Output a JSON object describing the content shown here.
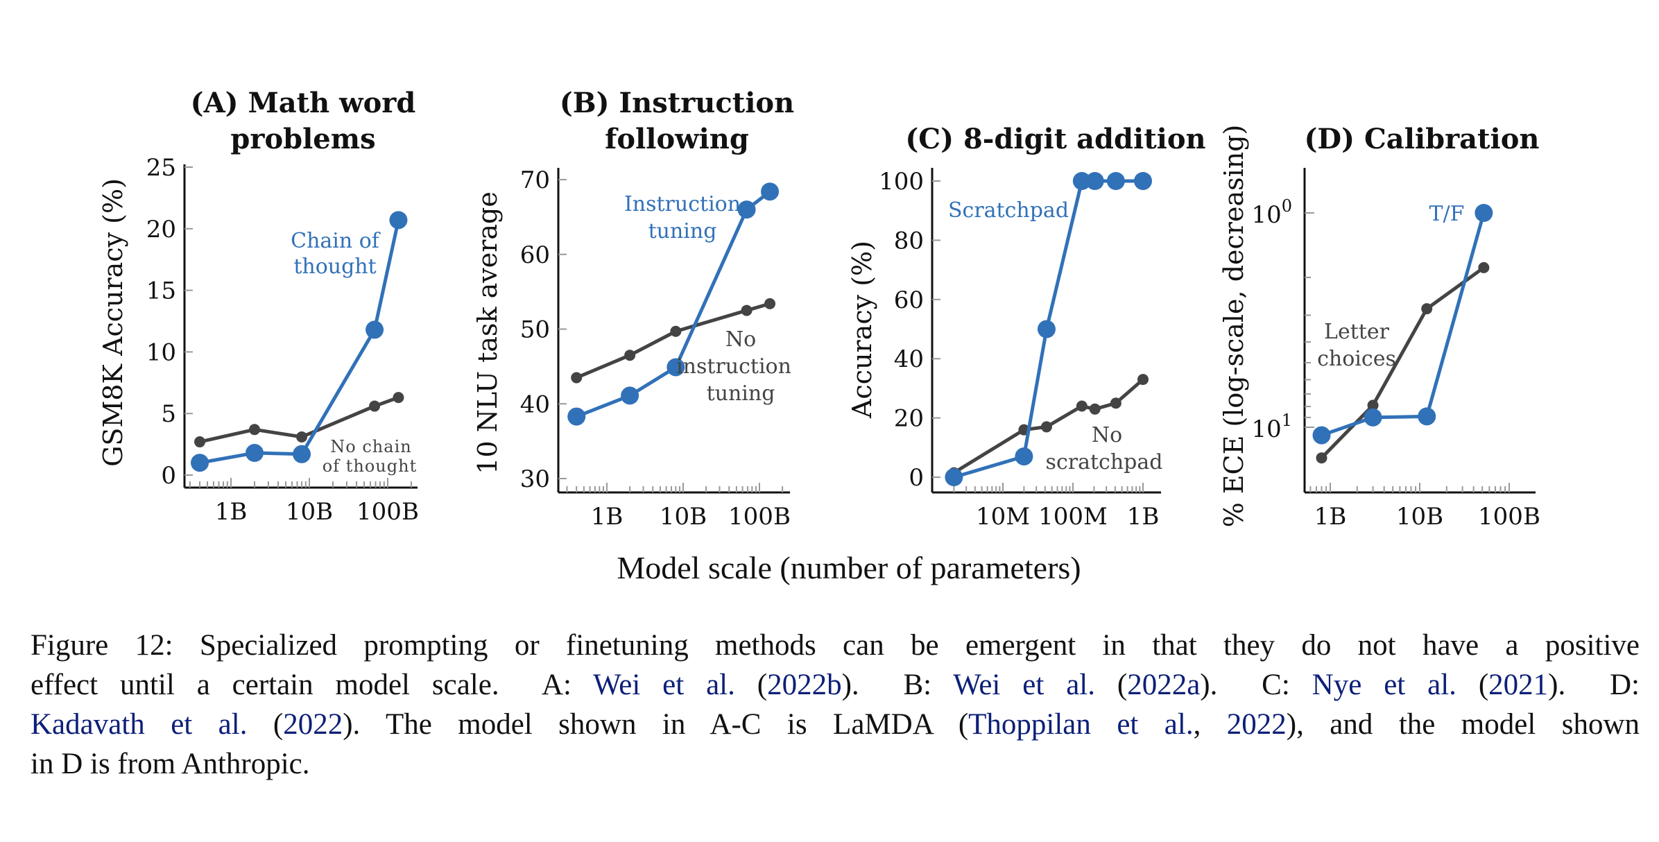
{
  "colors": {
    "method": "#3171b8",
    "baseline": "#444444",
    "citation": "#0c1f78",
    "axis": "#111111",
    "minor_tick": "#999999"
  },
  "shared_xlabel": "Model scale (number of parameters)",
  "chart_data": [
    {
      "id": "A",
      "type": "line",
      "title_line1": "(A) Math word",
      "title_line2": "problems",
      "ylabel": "GSM8K Accuracy (%)",
      "xscale": "log",
      "yscale": "linear",
      "xlim": [
        250000000.0,
        230000000000.0
      ],
      "ylim": [
        0,
        25
      ],
      "xticks": [
        {
          "value": 1000000000.0,
          "label": "1B"
        },
        {
          "value": 10000000000.0,
          "label": "10B"
        },
        {
          "value": 100000000000.0,
          "label": "100B"
        }
      ],
      "yticks": [
        {
          "value": 0,
          "label": "0"
        },
        {
          "value": 5,
          "label": "5"
        },
        {
          "value": 10,
          "label": "10"
        },
        {
          "value": 15,
          "label": "15"
        },
        {
          "value": 20,
          "label": "20"
        },
        {
          "value": 25,
          "label": "25"
        }
      ],
      "series": [
        {
          "name": "No chain of thought",
          "role": "baseline",
          "x": [
            400000000.0,
            2000000000.0,
            8000000000.0,
            68000000000.0,
            137000000000.0
          ],
          "y": [
            2.7,
            3.7,
            3.1,
            5.6,
            6.3
          ]
        },
        {
          "name": "Chain of thought",
          "role": "method",
          "x": [
            400000000.0,
            2000000000.0,
            8000000000.0,
            68000000000.0,
            137000000000.0
          ],
          "y": [
            1.0,
            1.8,
            1.7,
            11.8,
            20.7
          ]
        }
      ],
      "annotations": [
        {
          "lines": [
            "Chain of",
            "thought"
          ],
          "role": "method"
        },
        {
          "lines": [
            "No chain",
            "of thought"
          ],
          "role": "baseline"
        }
      ]
    },
    {
      "id": "B",
      "type": "line",
      "title_line1": "(B) Instruction",
      "title_line2": "following",
      "ylabel": "10 NLU task average",
      "xscale": "log",
      "yscale": "linear",
      "xlim": [
        250000000.0,
        230000000000.0
      ],
      "ylim": [
        30,
        70
      ],
      "xticks": [
        {
          "value": 1000000000.0,
          "label": "1B"
        },
        {
          "value": 10000000000.0,
          "label": "10B"
        },
        {
          "value": 100000000000.0,
          "label": "100B"
        }
      ],
      "yticks": [
        {
          "value": 30,
          "label": "30"
        },
        {
          "value": 40,
          "label": "40"
        },
        {
          "value": 50,
          "label": "50"
        },
        {
          "value": 60,
          "label": "60"
        },
        {
          "value": 70,
          "label": "70"
        }
      ],
      "series": [
        {
          "name": "No instruction tuning",
          "role": "baseline",
          "x": [
            400000000.0,
            2000000000.0,
            8000000000.0,
            68000000000.0,
            137000000000.0
          ],
          "y": [
            43.5,
            46.5,
            49.7,
            52.5,
            53.4
          ]
        },
        {
          "name": "Instruction tuning",
          "role": "method",
          "x": [
            400000000.0,
            2000000000.0,
            8000000000.0,
            68000000000.0,
            137000000000.0
          ],
          "y": [
            38.3,
            41.1,
            44.9,
            66.0,
            68.4
          ]
        }
      ],
      "annotations": [
        {
          "lines": [
            "Instruction",
            "tuning"
          ],
          "role": "method"
        },
        {
          "lines": [
            "No",
            "instruction",
            "tuning"
          ],
          "role": "baseline"
        }
      ]
    },
    {
      "id": "C",
      "type": "line",
      "title_line1": "(C) 8-digit addition",
      "title_line2": "",
      "ylabel": "Accuracy (%)",
      "xscale": "log",
      "yscale": "linear",
      "xlim": [
        1000000.0,
        1900000000.0
      ],
      "ylim": [
        0,
        100
      ],
      "xticks": [
        {
          "value": 10000000.0,
          "label": "10M"
        },
        {
          "value": 100000000.0,
          "label": "100M"
        },
        {
          "value": 1000000000.0,
          "label": "1B"
        }
      ],
      "yticks": [
        {
          "value": 0,
          "label": "0"
        },
        {
          "value": 20,
          "label": "20"
        },
        {
          "value": 40,
          "label": "40"
        },
        {
          "value": 60,
          "label": "60"
        },
        {
          "value": 80,
          "label": "80"
        },
        {
          "value": 100,
          "label": "100"
        }
      ],
      "series": [
        {
          "name": "No scratchpad",
          "role": "baseline",
          "x": [
            2000000.0,
            20000000.0,
            42000000.0,
            134000000.0,
            206000000.0,
            410000000.0,
            1000000000.0
          ],
          "y": [
            1.5,
            16,
            17,
            24,
            23,
            25,
            33
          ]
        },
        {
          "name": "Scratchpad",
          "role": "method",
          "x": [
            2000000.0,
            20000000.0,
            42000000.0,
            134000000.0,
            206000000.0,
            410000000.0,
            1000000000.0
          ],
          "y": [
            0,
            7,
            50,
            100,
            100,
            100,
            100
          ]
        }
      ],
      "annotations": [
        {
          "lines": [
            "Scratchpad"
          ],
          "role": "method"
        },
        {
          "lines": [
            "No",
            "scratchpad"
          ],
          "role": "baseline"
        }
      ]
    },
    {
      "id": "D",
      "type": "line",
      "title_line1": "(D) Calibration",
      "title_line2": "",
      "ylabel": "% ECE (log-scale, decreasing)",
      "xscale": "log",
      "yscale": "log-reversed",
      "xlim": [
        600000000.0,
        230000000000.0
      ],
      "ylim": [
        0.6,
        20
      ],
      "xticks": [
        {
          "value": 1000000000.0,
          "label": "1B"
        },
        {
          "value": 10000000000.0,
          "label": "10B"
        },
        {
          "value": 100000000000.0,
          "label": "100B"
        }
      ],
      "yticks": [
        {
          "value": 1,
          "label_base": "10",
          "label_exp": "0"
        },
        {
          "value": 10,
          "label_base": "10",
          "label_exp": "1"
        }
      ],
      "series": [
        {
          "name": "Letter choices",
          "role": "baseline",
          "x": [
            800000000.0,
            3000000000.0,
            12000000000.0,
            52000000000.0
          ],
          "y": [
            13.9,
            7.9,
            2.8,
            1.8
          ]
        },
        {
          "name": "T/F",
          "role": "method",
          "x": [
            800000000.0,
            3000000000.0,
            12000000000.0,
            52000000000.0
          ],
          "y": [
            10.9,
            9.0,
            8.9,
            1.0
          ]
        }
      ],
      "annotations": [
        {
          "lines": [
            "T/F"
          ],
          "role": "method"
        },
        {
          "lines": [
            "Letter",
            "choices"
          ],
          "role": "baseline"
        }
      ]
    }
  ],
  "caption": {
    "lines": [
      [
        {
          "text": "Figure 12: Specialized prompting or finetuning methods can be emergent in that they do not have a positive",
          "cite": false
        }
      ],
      [
        {
          "text": "effect until a certain model scale.  A: ",
          "cite": false
        },
        {
          "text": "Wei et al.",
          "cite": true
        },
        {
          "text": " (",
          "cite": false
        },
        {
          "text": "2022b",
          "cite": true
        },
        {
          "text": ").  B: ",
          "cite": false
        },
        {
          "text": "Wei et al.",
          "cite": true
        },
        {
          "text": " (",
          "cite": false
        },
        {
          "text": "2022a",
          "cite": true
        },
        {
          "text": ").  C: ",
          "cite": false
        },
        {
          "text": "Nye et al.",
          "cite": true
        },
        {
          "text": " (",
          "cite": false
        },
        {
          "text": "2021",
          "cite": true
        },
        {
          "text": ").  D:",
          "cite": false
        }
      ],
      [
        {
          "text": "Kadavath et al.",
          "cite": true
        },
        {
          "text": " (",
          "cite": false
        },
        {
          "text": "2022",
          "cite": true
        },
        {
          "text": "). The model shown in A-C is LaMDA (",
          "cite": false
        },
        {
          "text": "Thoppilan et al.",
          "cite": true
        },
        {
          "text": ", ",
          "cite": false
        },
        {
          "text": "2022",
          "cite": true
        },
        {
          "text": "), and the model shown",
          "cite": false
        }
      ],
      [
        {
          "text": "in D is from Anthropic.",
          "cite": false
        }
      ]
    ]
  }
}
